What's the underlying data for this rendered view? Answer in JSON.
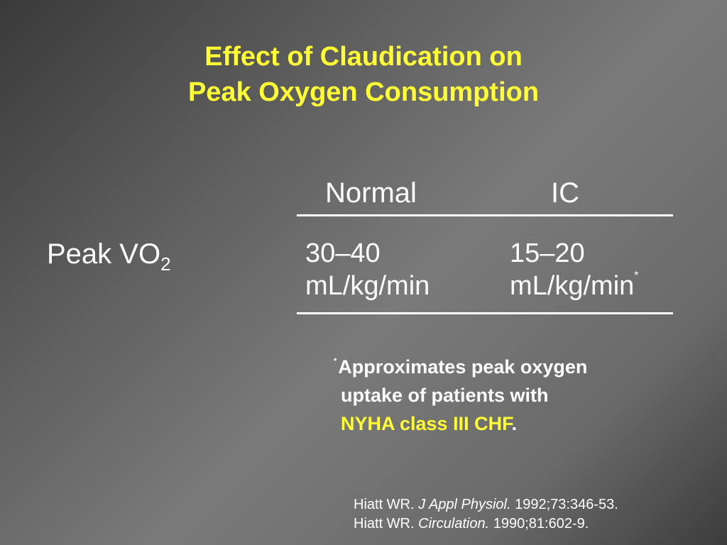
{
  "title": {
    "line1": "Effect of Claudication on",
    "line2": "Peak Oxygen Consumption"
  },
  "table": {
    "headers": [
      "Normal",
      "IC"
    ],
    "row_label": {
      "text": "Peak VO",
      "subscript": "2"
    },
    "cells": {
      "normal": {
        "line1": "30–40",
        "line2": "mL/kg/min"
      },
      "ic": {
        "line1": "15–20",
        "line2": "mL/kg/min",
        "marker": "*"
      }
    }
  },
  "footnote": {
    "marker": "*",
    "line1": "Approximates peak oxygen",
    "line2": "uptake of patients with",
    "highlight": "NYHA class III CHF",
    "end": "."
  },
  "references": [
    {
      "author": "Hiatt WR.",
      "journal": "J Appl Physiol.",
      "details": "1992;73:346-53."
    },
    {
      "author": "Hiatt WR.",
      "journal": "Circulation.",
      "details": "1990;81:602-9."
    }
  ],
  "colors": {
    "title": "#ffff33",
    "text": "#ffffff",
    "highlight": "#ffff33"
  }
}
